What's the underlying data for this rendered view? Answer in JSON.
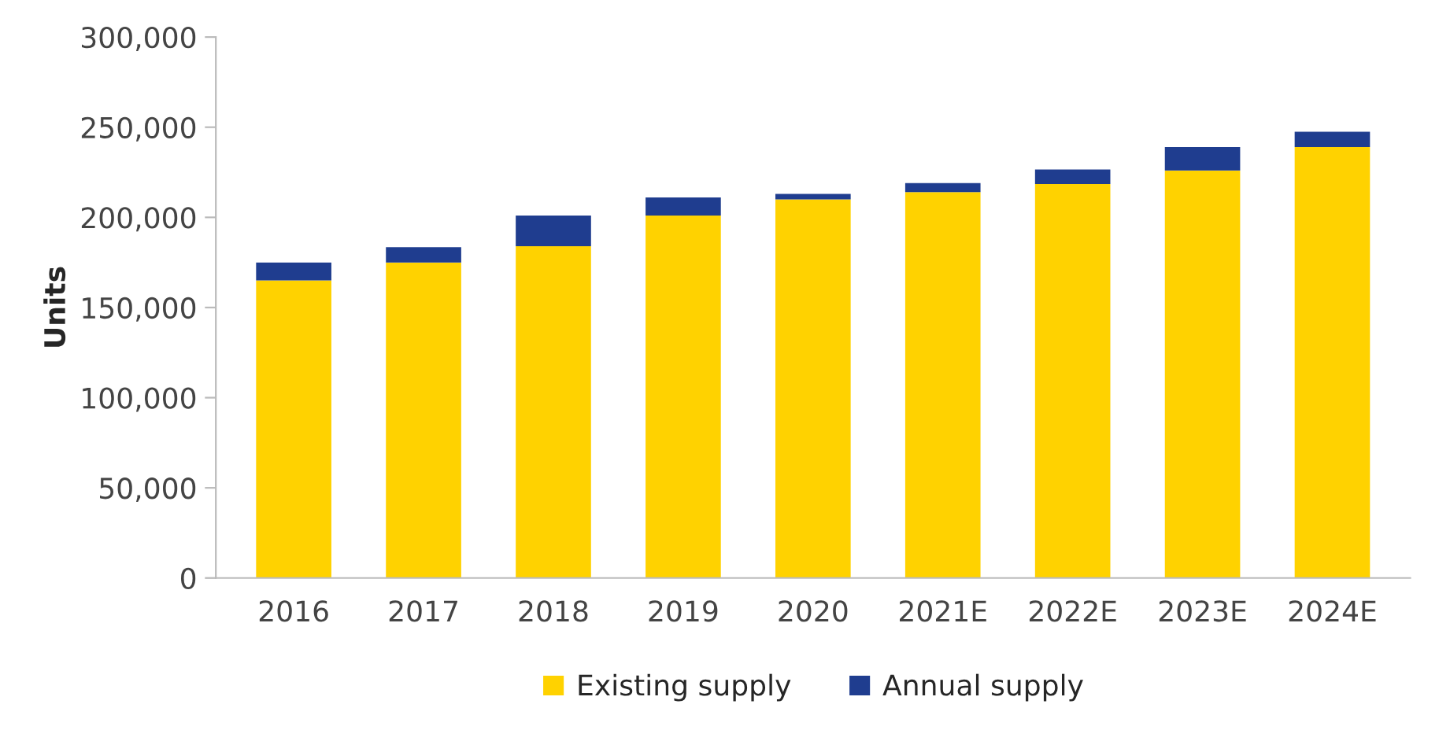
{
  "chart_data": {
    "type": "bar",
    "stacked": true,
    "ylabel": "Units",
    "categories": [
      "2016",
      "2017",
      "2018",
      "2019",
      "2020",
      "2021E",
      "2022E",
      "2023E",
      "2024E"
    ],
    "series": [
      {
        "name": "Existing supply",
        "color": "#ffd200",
        "values": [
          165000,
          175000,
          184000,
          201000,
          210000,
          214000,
          218500,
          226000,
          239000
        ]
      },
      {
        "name": "Annual supply",
        "color": "#1f3d8f",
        "values": [
          10000,
          8500,
          17000,
          10000,
          3000,
          5000,
          8000,
          13000,
          8500
        ]
      }
    ],
    "ylim": [
      0,
      300000
    ],
    "yticks": [
      {
        "value": 0,
        "label": "0"
      },
      {
        "value": 50000,
        "label": "50,000"
      },
      {
        "value": 100000,
        "label": "100,000"
      },
      {
        "value": 150000,
        "label": "150,000"
      },
      {
        "value": 200000,
        "label": "200,000"
      },
      {
        "value": 250000,
        "label": "250,000"
      },
      {
        "value": 300000,
        "label": "300,000"
      }
    ],
    "grid": false,
    "legend": "bottom"
  }
}
